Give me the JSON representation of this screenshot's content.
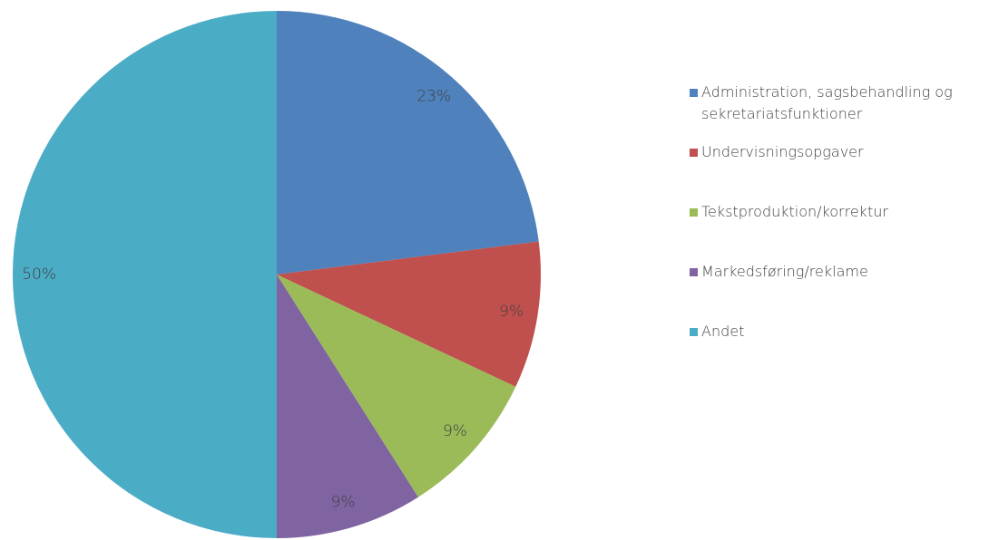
{
  "chart_data": {
    "type": "pie",
    "categories": [
      "Administration, sagsbehandling og sekretariatsfunktioner",
      "Undervisningsopgaver",
      "Tekstproduktion/korrektur",
      "Markedsføring/reklame",
      "Andet"
    ],
    "values": [
      23,
      9,
      9,
      9,
      50
    ],
    "value_labels": [
      "23%",
      "9%",
      "9%",
      "9%",
      "50%"
    ],
    "colors": [
      "#4f81bd",
      "#c0504d",
      "#9bbb59",
      "#8064a2",
      "#4bacc6"
    ],
    "legend": "right"
  }
}
